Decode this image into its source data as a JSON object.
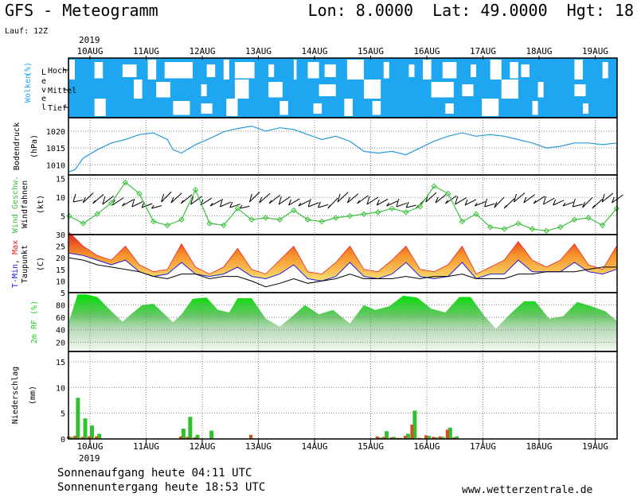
{
  "header": {
    "title": "GFS - Meteogramm",
    "location": "Lon: 8.0000  Lat: 49.0000  Hgt: 18",
    "run": "Lauf: 12Z",
    "year": "2019"
  },
  "footer": {
    "sunrise": "Sonnenaufgang heute 04:11 UTC",
    "sunset": "Sonnenuntergang heute 18:53 UTC",
    "site": "www.wetterzentrale.de"
  },
  "colors": {
    "cloud_bg": "#1ea6f0",
    "pressure": "#2a9ad6",
    "wind": "#3cc13c",
    "tmin": "#2020e0",
    "tmax": "#f02020",
    "dew": "#000000",
    "rh": "#28d028",
    "precip_rain": "#30c030",
    "precip_conv": "#d05020"
  },
  "chart_data": [
    {
      "type": "heatmap",
      "name": "Wolken (%)",
      "ylabel": "Wolken (%)",
      "yticks": [
        "Hoch",
        "Mittel",
        "Tief"
      ],
      "x_axis": [
        "10AUG",
        "11AUG",
        "12AUG",
        "13AUG",
        "14AUG",
        "15AUG",
        "16AUG",
        "17AUG",
        "18AUG",
        "19AUG"
      ],
      "clear_patches": {
        "Hoch": [
          [
            0.0,
            0.1
          ],
          [
            0.45,
            0.6
          ],
          [
            0.95,
            1.2
          ],
          [
            1.4,
            1.55
          ],
          [
            1.7,
            2.2
          ],
          [
            2.45,
            2.6
          ],
          [
            2.75,
            2.85
          ],
          [
            2.95,
            3.3
          ],
          [
            3.55,
            3.65
          ],
          [
            4.0,
            4.05
          ],
          [
            4.25,
            4.45
          ],
          [
            4.55,
            4.75
          ],
          [
            4.95,
            5.25
          ],
          [
            5.6,
            5.7
          ],
          [
            6.05,
            6.15
          ],
          [
            6.3,
            6.45
          ],
          [
            6.65,
            6.9
          ],
          [
            7.15,
            7.25
          ],
          [
            7.5,
            7.7
          ],
          [
            7.85,
            8.0
          ],
          [
            8.05,
            8.2
          ],
          [
            9.0,
            9.15
          ],
          [
            9.5,
            9.6
          ]
        ],
        "Mittel": [
          [
            1.15,
            1.3
          ],
          [
            1.55,
            1.8
          ],
          [
            2.35,
            2.45
          ],
          [
            2.95,
            3.2
          ],
          [
            3.55,
            3.8
          ],
          [
            4.45,
            4.75
          ],
          [
            5.25,
            5.55
          ],
          [
            6.45,
            6.85
          ],
          [
            7.0,
            7.2
          ],
          [
            7.7,
            8.0
          ],
          [
            8.35,
            8.45
          ],
          [
            9.0,
            9.2
          ]
        ],
        "Tief": [
          [
            0.45,
            0.65
          ],
          [
            1.85,
            2.15
          ],
          [
            2.35,
            2.55
          ],
          [
            2.8,
            3.0
          ],
          [
            3.75,
            3.9
          ],
          [
            4.35,
            4.5
          ],
          [
            4.9,
            5.05
          ],
          [
            5.4,
            5.55
          ],
          [
            6.7,
            6.85
          ],
          [
            7.35,
            7.65
          ],
          [
            8.25,
            8.35
          ],
          [
            9.15,
            9.25
          ]
        ]
      }
    },
    {
      "type": "line",
      "name": "Bodendruck",
      "ylabel": "Bodendruck (hPa)",
      "ylim": [
        1007,
        1024
      ],
      "yticks": [
        1010,
        1015,
        1020
      ],
      "x": [
        0,
        0.1,
        0.25,
        0.5,
        0.75,
        1.0,
        1.25,
        1.5,
        1.75,
        1.85,
        2.0,
        2.25,
        2.5,
        2.75,
        3.0,
        3.25,
        3.5,
        3.75,
        4.0,
        4.25,
        4.5,
        4.75,
        5.0,
        5.25,
        5.5,
        5.75,
        6.0,
        6.25,
        6.5,
        6.75,
        7.0,
        7.25,
        7.5,
        7.75,
        8.0,
        8.25,
        8.5,
        8.75,
        9.0,
        9.25,
        9.5,
        9.75
      ],
      "values": [
        1008,
        1008.5,
        1012,
        1014.5,
        1016.5,
        1017.5,
        1019,
        1019.5,
        1017.5,
        1014.5,
        1013.5,
        1016,
        1017.8,
        1019.8,
        1020.8,
        1021.5,
        1020,
        1021,
        1020.5,
        1019,
        1017.5,
        1018.5,
        1017,
        1014,
        1013.5,
        1014,
        1013,
        1015,
        1017,
        1018.5,
        1019.5,
        1018.5,
        1019,
        1018.5,
        1017.5,
        1016.5,
        1015,
        1015.5,
        1016.5,
        1016.5,
        1016,
        1016.5
      ]
    },
    {
      "type": "line",
      "name": "Wind Geschw. / Windfahnen",
      "ylabel": "Wind Geschw. Windfahnen (kt)",
      "ylim": [
        0,
        16
      ],
      "yticks": [
        5,
        10,
        15
      ],
      "x": [
        0,
        0.25,
        0.5,
        0.75,
        1.0,
        1.25,
        1.5,
        1.75,
        2.0,
        2.25,
        2.5,
        2.75,
        3.0,
        3.25,
        3.5,
        3.75,
        4.0,
        4.25,
        4.5,
        4.75,
        5.0,
        5.25,
        5.5,
        5.75,
        6.0,
        6.25,
        6.5,
        6.75,
        7.0,
        7.25,
        7.5,
        7.75,
        8.0,
        8.25,
        8.5,
        8.75,
        9.0,
        9.25,
        9.5,
        9.75
      ],
      "values": [
        5,
        3,
        5.5,
        8.5,
        14,
        11,
        3.5,
        2.5,
        4,
        12,
        3,
        2.5,
        7,
        4,
        4.5,
        4,
        6.5,
        4,
        3.5,
        4.5,
        5,
        5.5,
        6,
        7,
        6,
        7.5,
        13,
        11,
        3.5,
        5.5,
        2,
        1.5,
        3,
        1.5,
        1,
        2,
        4,
        4.5,
        2.5,
        7
      ]
    },
    {
      "type": "area",
      "name": "T-Min, Max / Taupunkt",
      "ylabel": "T-Min, Max Taupunkt (C)",
      "ylim": [
        5,
        30
      ],
      "yticks": [
        5,
        10,
        15,
        20,
        25,
        30
      ],
      "x": [
        0,
        0.25,
        0.5,
        0.75,
        1.0,
        1.25,
        1.5,
        1.75,
        2.0,
        2.25,
        2.5,
        2.75,
        3.0,
        3.25,
        3.5,
        3.75,
        4.0,
        4.25,
        4.5,
        4.75,
        5.0,
        5.25,
        5.5,
        5.75,
        6.0,
        6.25,
        6.5,
        6.75,
        7.0,
        7.25,
        7.5,
        7.75,
        8.0,
        8.25,
        8.5,
        8.75,
        9.0,
        9.25,
        9.5,
        9.75
      ],
      "series": [
        {
          "name": "T-Max",
          "values": [
            31,
            25,
            21,
            19,
            25,
            17,
            14,
            15,
            26,
            16,
            13,
            16,
            24,
            15,
            13,
            19,
            25,
            14,
            13,
            18,
            25,
            15,
            14,
            19,
            25,
            15,
            14,
            17,
            25,
            13,
            16,
            19,
            27,
            19,
            16,
            19,
            26,
            17,
            15,
            25
          ]
        },
        {
          "name": "T-Min",
          "values": [
            22,
            21,
            19,
            17,
            19,
            14,
            12,
            13,
            18,
            13,
            12,
            13,
            16,
            12,
            11,
            13,
            17,
            11,
            10,
            12,
            18,
            12,
            11,
            13,
            18,
            12,
            11,
            12,
            18,
            11,
            13,
            13,
            19,
            14,
            14,
            14,
            18,
            14,
            13,
            15
          ]
        },
        {
          "name": "Taupunkt",
          "values": [
            20,
            19,
            17,
            16,
            15,
            14,
            12,
            11,
            13,
            13,
            11,
            12,
            12,
            10,
            7.5,
            9,
            11,
            9,
            10,
            11,
            13,
            11,
            11,
            11,
            12,
            11,
            12,
            12,
            13,
            11,
            11,
            11,
            13,
            13,
            14,
            14,
            14,
            15,
            16,
            16
          ]
        }
      ]
    },
    {
      "type": "area",
      "name": "2m RF (%)",
      "ylabel": "2m RF (%)",
      "ylim": [
        5,
        100
      ],
      "yticks": [
        20,
        40,
        60,
        80
      ],
      "x": [
        0,
        0.15,
        0.3,
        0.5,
        0.75,
        0.95,
        1.1,
        1.3,
        1.5,
        1.7,
        1.85,
        2.0,
        2.2,
        2.45,
        2.65,
        2.85,
        3.0,
        3.25,
        3.5,
        3.75,
        3.95,
        4.2,
        4.45,
        4.7,
        5.0,
        5.25,
        5.45,
        5.7,
        5.95,
        6.2,
        6.45,
        6.7,
        6.95,
        7.15,
        7.4,
        7.6,
        7.85,
        8.1,
        8.3,
        8.55,
        8.8,
        9.05,
        9.3,
        9.55,
        9.75
      ],
      "values": [
        55,
        97,
        97,
        93,
        70,
        53,
        65,
        80,
        82,
        65,
        52,
        65,
        90,
        92,
        72,
        68,
        91,
        91,
        58,
        45,
        60,
        80,
        65,
        72,
        50,
        80,
        72,
        78,
        95,
        92,
        74,
        68,
        93,
        93,
        62,
        42,
        65,
        86,
        86,
        58,
        62,
        85,
        78,
        70,
        55
      ]
    },
    {
      "type": "bar",
      "name": "Niederschlag",
      "ylabel": "Niederschlag (mm)",
      "ylim": [
        0,
        17
      ],
      "yticks": [
        0,
        5,
        10,
        15
      ],
      "x": [
        0.0,
        0.12,
        0.25,
        0.37,
        0.5,
        2.0,
        2.12,
        2.25,
        2.5,
        3.25,
        5.5,
        5.62,
        5.75,
        5.87,
        6.0,
        6.12,
        6.25,
        6.37,
        6.5,
        6.62,
        6.75,
        6.87
      ],
      "series": [
        {
          "name": "rain",
          "values": [
            0.4,
            8,
            4,
            2.6,
            1,
            2,
            4.3,
            0.8,
            1.6,
            0,
            0.3,
            1.5,
            0.4,
            0.2,
            1,
            5.5,
            0,
            0.6,
            0.3,
            0.4,
            2.2,
            0.5
          ]
        },
        {
          "name": "conv",
          "values": [
            0.5,
            0.6,
            0.4,
            0.5,
            0.5,
            0.5,
            0.4,
            0.3,
            0,
            0.8,
            0.5,
            0.4,
            0.3,
            0.2,
            0.6,
            2.8,
            0.2,
            0.7,
            0.4,
            0.5,
            1.8,
            0.3
          ]
        }
      ]
    }
  ]
}
